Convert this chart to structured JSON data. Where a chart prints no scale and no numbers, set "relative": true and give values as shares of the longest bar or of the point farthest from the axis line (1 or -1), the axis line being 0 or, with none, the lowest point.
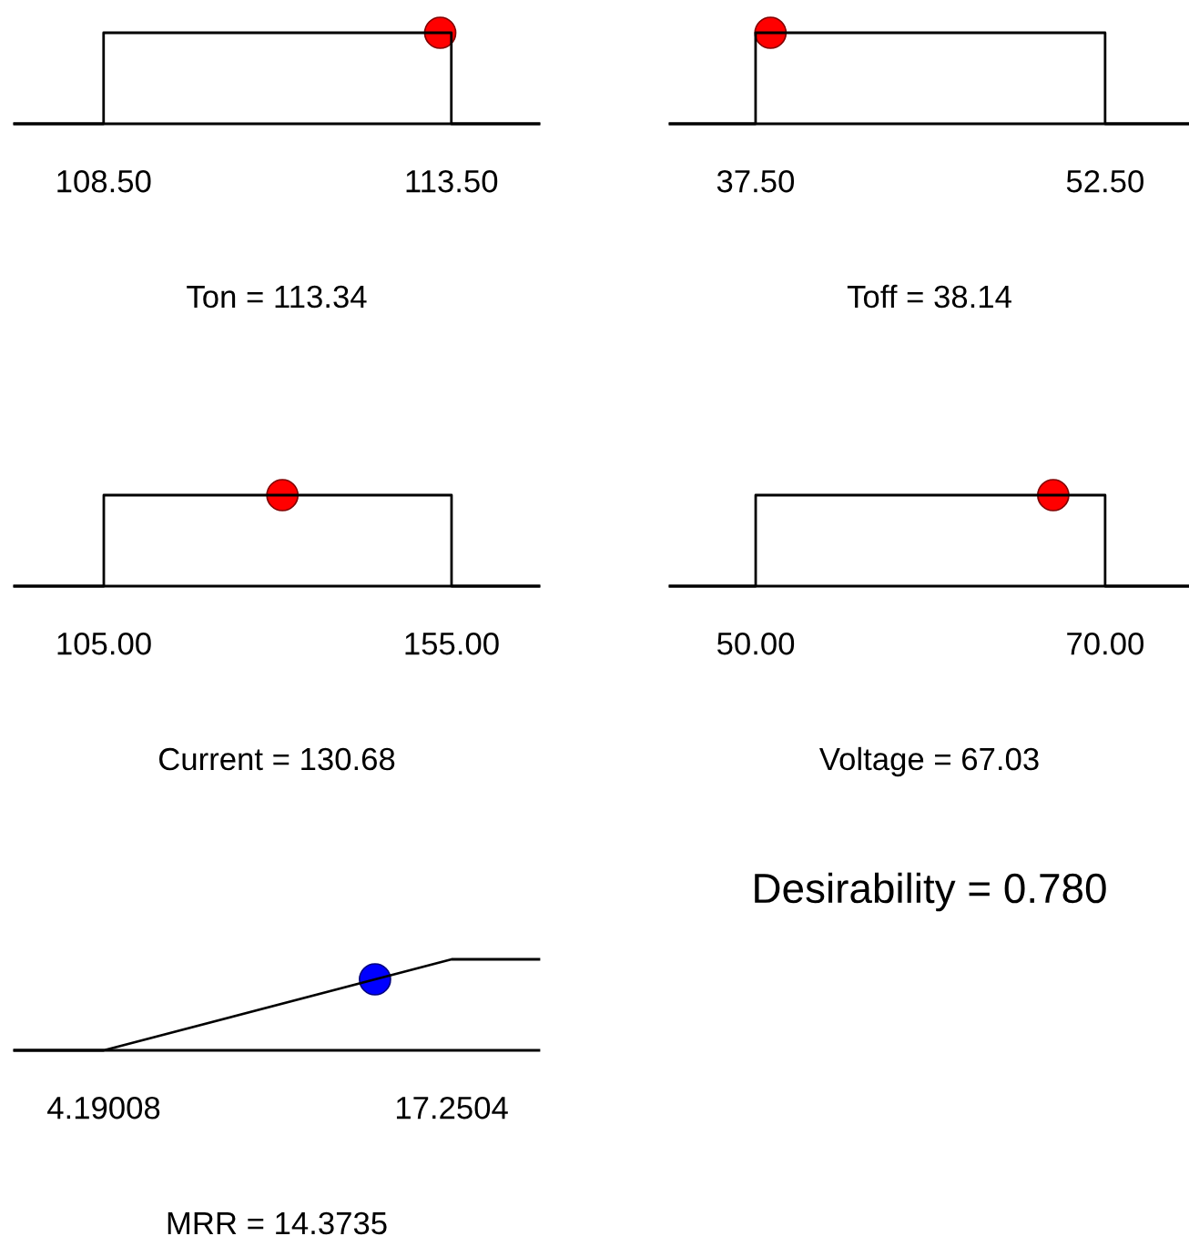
{
  "chart_data": [
    {
      "type": "line",
      "relative": true,
      "xlabel": "Ton = 113.34",
      "xlim": [
        107.22,
        114.76
      ],
      "xticks": [
        {
          "value": 108.5,
          "label": "108.50"
        },
        {
          "value": 113.5,
          "label": "113.50"
        }
      ],
      "tick_labels": "x",
      "series": [
        {
          "type": "line",
          "color": "#000000",
          "x": [
            107.22,
            108.5,
            108.5,
            113.5,
            113.5,
            114.76
          ],
          "values": [
            0,
            0,
            1,
            1,
            0,
            0
          ]
        },
        {
          "type": "scatter",
          "marker": "circle",
          "color": "#ff0000",
          "x": [
            113.34
          ],
          "values": [
            1
          ]
        }
      ]
    },
    {
      "type": "line",
      "relative": true,
      "xlabel": "Toff = 38.14",
      "xlim": [
        33.83,
        56.1
      ],
      "xticks": [
        {
          "value": 37.5,
          "label": "37.50"
        },
        {
          "value": 52.5,
          "label": "52.50"
        }
      ],
      "tick_labels": "x",
      "series": [
        {
          "type": "line",
          "color": "#000000",
          "x": [
            33.83,
            37.5,
            37.5,
            52.5,
            52.5,
            56.1
          ],
          "values": [
            0,
            0,
            1,
            1,
            0,
            0
          ]
        },
        {
          "type": "scatter",
          "marker": "circle",
          "color": "#ff0000",
          "x": [
            38.14
          ],
          "values": [
            1
          ]
        }
      ]
    },
    {
      "type": "line",
      "relative": true,
      "xlabel": "Current = 130.68",
      "xlim": [
        92.17,
        167.57
      ],
      "xticks": [
        {
          "value": 105,
          "label": "105.00"
        },
        {
          "value": 155,
          "label": "155.00"
        }
      ],
      "tick_labels": "x",
      "series": [
        {
          "type": "line",
          "color": "#000000",
          "x": [
            92.17,
            105,
            105,
            155,
            155,
            167.57
          ],
          "values": [
            0,
            0,
            1,
            1,
            0,
            0
          ]
        },
        {
          "type": "scatter",
          "marker": "circle",
          "color": "#ff0000",
          "x": [
            130.68
          ],
          "values": [
            1
          ]
        }
      ]
    },
    {
      "type": "line",
      "relative": true,
      "xlabel": "Voltage = 67.03",
      "xlim": [
        45.1,
        74.8
      ],
      "xticks": [
        {
          "value": 50,
          "label": "50.00"
        },
        {
          "value": 70,
          "label": "70.00"
        }
      ],
      "tick_labels": "x",
      "series": [
        {
          "type": "line",
          "color": "#000000",
          "x": [
            45.1,
            50,
            50,
            70,
            70,
            74.8
          ],
          "values": [
            0,
            0,
            1,
            1,
            0,
            0
          ]
        },
        {
          "type": "scatter",
          "marker": "circle",
          "color": "#ff0000",
          "x": [
            67.03
          ],
          "values": [
            1
          ]
        }
      ]
    },
    {
      "type": "line",
      "relative": true,
      "xlabel": "MRR = 14.3735",
      "xlim": [
        0.84,
        20.53
      ],
      "xticks": [
        {
          "value": 4.19008,
          "label": "4.19008"
        },
        {
          "value": 17.2504,
          "label": "17.2504"
        }
      ],
      "tick_labels": "x",
      "series": [
        {
          "type": "line",
          "color": "#000000",
          "x": [
            0.84,
            4.19008,
            17.2504,
            20.53
          ],
          "values": [
            0,
            0,
            1,
            1
          ]
        },
        {
          "type": "scatter",
          "marker": "circle",
          "color": "#0000ff",
          "x": [
            14.3735
          ],
          "values": [
            0.78
          ]
        }
      ]
    },
    {
      "type": "other",
      "title": "Desirability = 0.780"
    }
  ]
}
